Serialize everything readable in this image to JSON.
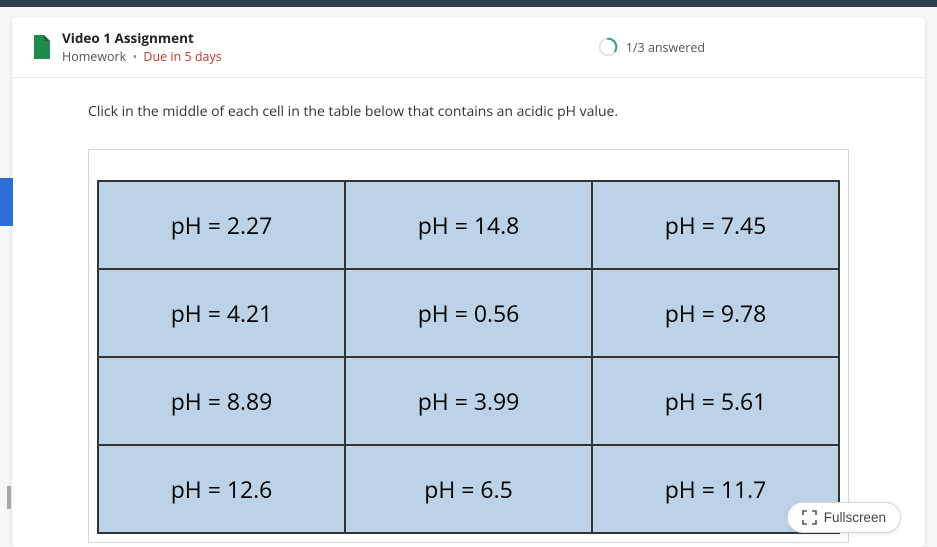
{
  "assignment": {
    "title": "Video 1 Assignment",
    "category": "Homework",
    "due": "Due in 5 days"
  },
  "progress": {
    "text": "1/3 answered",
    "fraction": 0.333,
    "ring_color": "#2aa86f",
    "ring_bg": "#d9ded9"
  },
  "instruction": "Click in the middle of each cell in the table below that contains an acidic pH value.",
  "table": {
    "cell_bg": "#bcd2e6",
    "cell_border": "#333333",
    "frame_border": "#d6d6d6",
    "cell_fontsize": 23,
    "rows": [
      [
        "pH = 2.27",
        "pH = 14.8",
        "pH = 7.45"
      ],
      [
        "pH = 4.21",
        "pH = 0.56",
        "pH = 9.78"
      ],
      [
        "pH = 8.89",
        "pH = 3.99",
        "pH = 5.61"
      ],
      [
        "pH = 12.6",
        "pH = 6.5",
        "pH = 11.7"
      ]
    ]
  },
  "fullscreen_label": "Fullscreen",
  "doc_icon_color": "#1e8a4c"
}
